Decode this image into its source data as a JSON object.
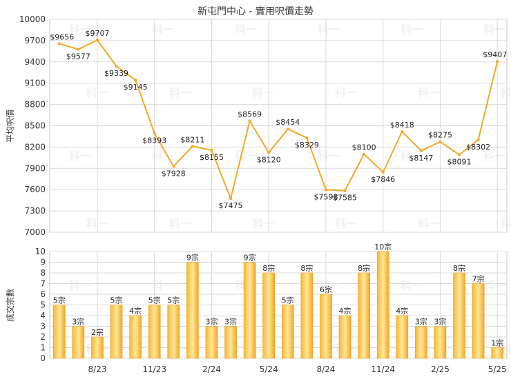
{
  "chart_data": [
    {
      "type": "line",
      "title": "新屯門中心 - 實用呎價走勢",
      "ylabel": "平均呎價",
      "ylim": [
        7000,
        10000
      ],
      "yticks": [
        7000,
        7300,
        7600,
        7900,
        8200,
        8500,
        8800,
        9100,
        9400,
        9700,
        10000
      ],
      "grid": true,
      "color": "#f5a623",
      "series": [
        {
          "values": [
            9656,
            9577,
            9707,
            9339,
            9145,
            8393,
            7928,
            8211,
            8155,
            7475,
            8569,
            8120,
            8454,
            8329,
            7598,
            7585,
            8100,
            7846,
            8418,
            8147,
            8275,
            8091,
            8302,
            9407
          ]
        }
      ],
      "labels": [
        "$9656",
        "$9577",
        "$9707",
        "$9339",
        "$9145",
        "$8393",
        "$7928",
        "$8211",
        "$8155",
        "$7475",
        "$8569",
        "$8120",
        "$8454",
        "$8329",
        "$7598",
        "$7585",
        "$8100",
        "$7846",
        "$8418",
        "$8147",
        "$8275",
        "$8091",
        "$8302",
        "$9407"
      ]
    },
    {
      "type": "bar",
      "ylabel": "成交宗數",
      "ylim": [
        0,
        10
      ],
      "yticks": [
        0,
        1,
        2,
        3,
        4,
        5,
        6,
        7,
        8,
        9,
        10
      ],
      "grid": true,
      "color": "#f5a623",
      "values": [
        5,
        3,
        2,
        5,
        4,
        5,
        5,
        9,
        3,
        3,
        9,
        8,
        5,
        8,
        6,
        4,
        8,
        10,
        4,
        3,
        3,
        8,
        7,
        1
      ],
      "labels": [
        "5宗",
        "3宗",
        "2宗",
        "5宗",
        "4宗",
        "5宗",
        "5宗",
        "9宗",
        "3宗",
        "3宗",
        "9宗",
        "8宗",
        "5宗",
        "8宗",
        "6宗",
        "4宗",
        "8宗",
        "10宗",
        "4宗",
        "3宗",
        "3宗",
        "8宗",
        "7宗",
        "1宗"
      ]
    }
  ],
  "x_axis": {
    "tick_labels": [
      "8/23",
      "11/23",
      "2/24",
      "5/24",
      "8/24",
      "11/24",
      "2/25",
      "5/25"
    ],
    "tick_indices": [
      2,
      5,
      8,
      11,
      14,
      17,
      20,
      23
    ]
  },
  "watermark": "科一"
}
